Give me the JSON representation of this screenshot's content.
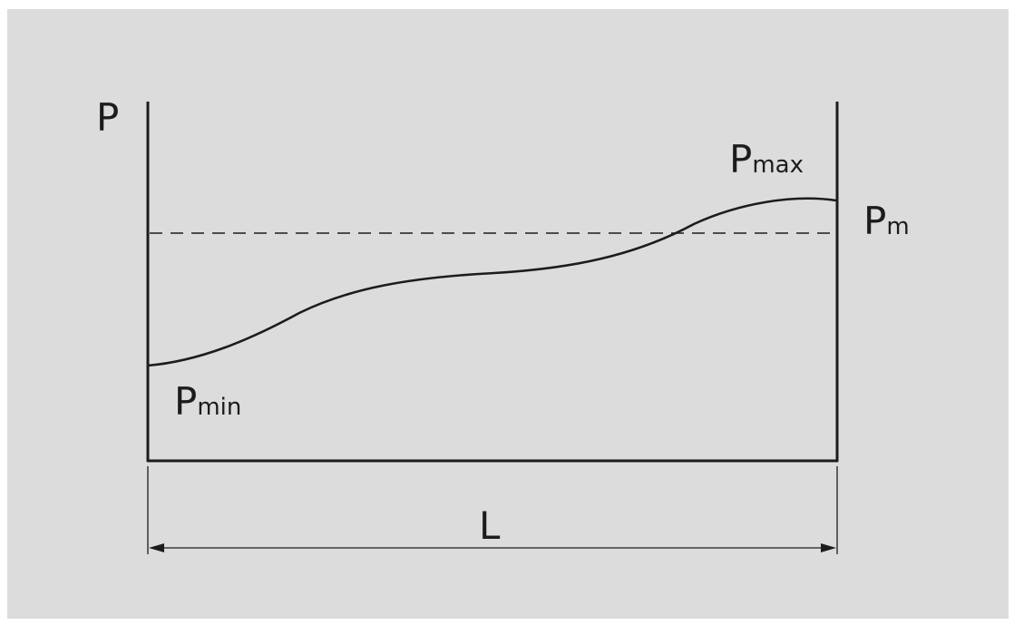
{
  "diagram": {
    "labels": {
      "y_axis": "P",
      "x_axis": "L",
      "p_max": {
        "base": "P",
        "sub": "max"
      },
      "p_m": {
        "base": "P",
        "sub": "m"
      },
      "p_min": {
        "base": "P",
        "sub": "min"
      }
    },
    "colors": {
      "background": "#dcdcdc",
      "stroke": "#1c1c1c",
      "page": "#ffffff"
    }
  }
}
